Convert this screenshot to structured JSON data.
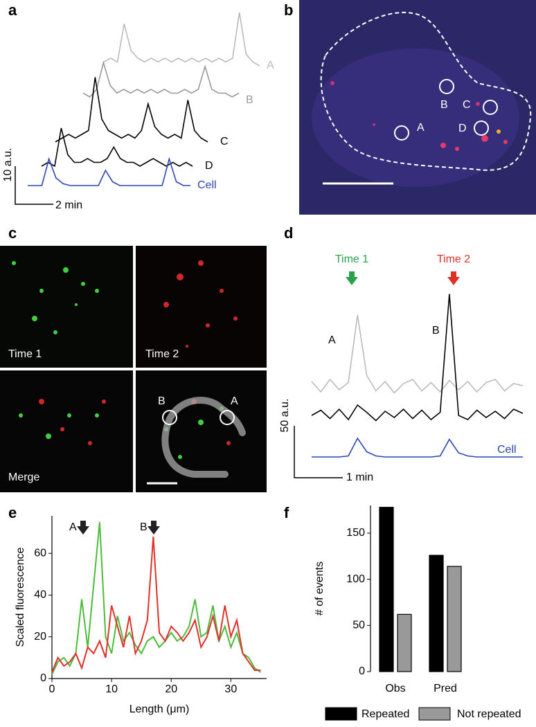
{
  "panel_labels": [
    "a",
    "b",
    "c",
    "d",
    "e",
    "f"
  ],
  "image_b": {
    "roi_labels": [
      "A",
      "B",
      "C",
      "D"
    ]
  },
  "image_c": {
    "captions": [
      "Time 1",
      "Time 2",
      "Merge"
    ],
    "roi_labels": [
      "B",
      "A"
    ]
  },
  "chart_data": [
    {
      "type": "traces",
      "scale_bar": {
        "y_label": "10 a.u.",
        "x_label": "2 min"
      },
      "series": [
        {
          "name": "A",
          "color": "#bbbbbb",
          "values": [
            1,
            2,
            1,
            11,
            4,
            2,
            1,
            2,
            1,
            2,
            1,
            2,
            1,
            2,
            1,
            2,
            1,
            2,
            1,
            2,
            14,
            3,
            1,
            0
          ]
        },
        {
          "name": "B",
          "color": "#999999",
          "values": [
            1,
            0,
            2,
            9,
            3,
            1,
            2,
            1,
            2,
            1,
            2,
            1,
            2,
            1,
            1,
            2,
            1,
            2,
            8,
            2,
            1,
            1,
            0,
            1
          ]
        },
        {
          "name": "C",
          "color": "#000000",
          "values": [
            0,
            1,
            2,
            1,
            2,
            3,
            17,
            6,
            3,
            2,
            1,
            2,
            1,
            3,
            10,
            4,
            2,
            1,
            2,
            1,
            11,
            3,
            1,
            0
          ]
        },
        {
          "name": "D",
          "color": "#000000",
          "values": [
            0,
            1,
            0,
            10,
            3,
            1,
            1,
            2,
            1,
            1,
            2,
            5,
            2,
            1,
            1,
            0,
            1,
            2,
            1,
            0,
            1,
            0,
            1,
            0
          ]
        },
        {
          "name": "Cell",
          "color": "#2b45b0",
          "values": [
            0,
            0,
            0,
            7,
            2,
            0.5,
            0,
            0,
            0,
            0,
            0,
            4,
            1,
            0,
            0,
            0,
            0,
            0,
            0,
            0,
            7,
            1,
            0,
            0
          ]
        }
      ]
    },
    {
      "type": "traces",
      "scale_bar": {
        "y_label": "50 a.u.",
        "x_label": "1 min"
      },
      "annotations": [
        {
          "text": "Time 1",
          "color": "#2aa14a"
        },
        {
          "text": "Time 2",
          "color": "#e0302a"
        }
      ],
      "series": [
        {
          "name": "A",
          "color": "#bbbbbb",
          "values": [
            6,
            -4,
            8,
            -2,
            5,
            70,
            12,
            -3,
            6,
            -5,
            4,
            8,
            -3,
            5,
            -4,
            7,
            -2,
            6,
            -4,
            5,
            8,
            -3,
            4,
            2
          ]
        },
        {
          "name": "B",
          "color": "#000000",
          "values": [
            0,
            5,
            -3,
            6,
            -4,
            10,
            3,
            -5,
            4,
            -2,
            6,
            -3,
            5,
            -4,
            3,
            117,
            0,
            -4,
            5,
            -2,
            4,
            -3,
            6,
            2
          ]
        },
        {
          "name": "Cell",
          "color": "#2b45b0",
          "values": [
            0,
            0,
            0,
            0,
            1,
            18,
            5,
            1,
            0,
            0,
            0,
            0,
            0,
            0,
            1,
            17,
            4,
            1,
            0,
            0,
            0,
            0,
            0,
            0
          ]
        }
      ]
    },
    {
      "type": "line",
      "x_label": "Length (μm)",
      "y_label": "Scaled fluorescence",
      "annotations": [
        "A",
        "B"
      ],
      "x": [
        0,
        1,
        2,
        3,
        4,
        5,
        6,
        7,
        8,
        9,
        10,
        11,
        12,
        13,
        14,
        15,
        16,
        17,
        18,
        19,
        20,
        21,
        22,
        23,
        24,
        25,
        26,
        27,
        28,
        29,
        30,
        31,
        32,
        33,
        34,
        35
      ],
      "xlim": [
        0,
        36
      ],
      "ylim": [
        0,
        78
      ],
      "xticks": [
        0,
        10,
        20,
        30
      ],
      "yticks": [
        0,
        20,
        40,
        60
      ],
      "series": [
        {
          "color": "#4cbb3c",
          "values": [
            2,
            8,
            10,
            6,
            12,
            38,
            15,
            45,
            75,
            20,
            12,
            30,
            18,
            22,
            16,
            12,
            18,
            20,
            15,
            18,
            22,
            18,
            20,
            25,
            38,
            20,
            22,
            35,
            18,
            25,
            15,
            22,
            12,
            10,
            5,
            3
          ]
        },
        {
          "color": "#e0302a",
          "values": [
            3,
            10,
            6,
            8,
            12,
            5,
            15,
            12,
            18,
            10,
            35,
            25,
            15,
            30,
            12,
            18,
            28,
            68,
            22,
            18,
            25,
            22,
            18,
            22,
            28,
            15,
            20,
            30,
            18,
            35,
            20,
            28,
            12,
            8,
            4,
            4
          ]
        }
      ]
    },
    {
      "type": "bar",
      "y_label": "# of events",
      "categories": [
        "Obs",
        "Pred"
      ],
      "ylim": [
        0,
        180
      ],
      "yticks": [
        0,
        50,
        100,
        150
      ],
      "legend": "bottom",
      "series": [
        {
          "name": "Repeated",
          "color": "#000000",
          "values": [
            178,
            126
          ]
        },
        {
          "name": "Not repeated",
          "color": "#999999",
          "values": [
            62,
            114
          ]
        }
      ]
    }
  ]
}
